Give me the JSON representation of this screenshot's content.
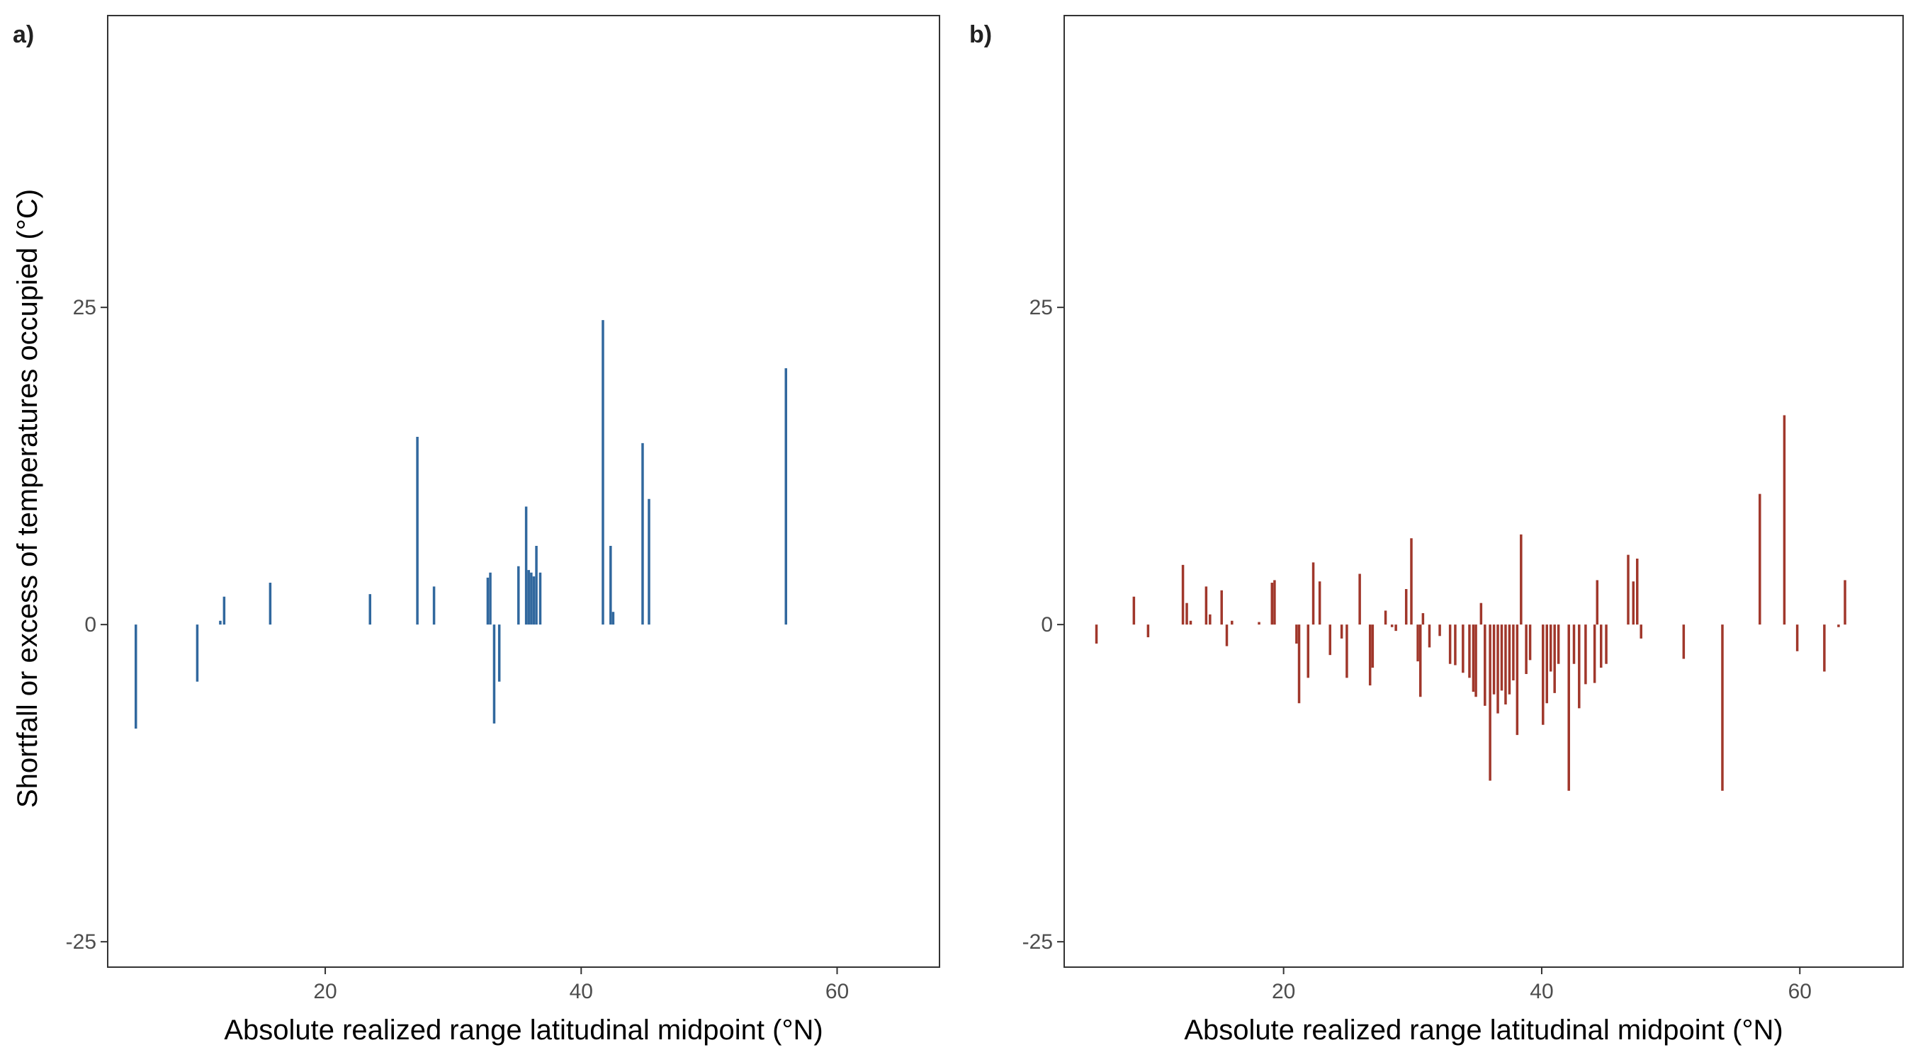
{
  "ylabel": "Shortfall or excess of temperatures occupied (°C)",
  "chart_data": [
    {
      "type": "bar",
      "panel_label": "a)",
      "xlabel": "Absolute realized range latitudinal midpoint (°N)",
      "ylabel": "Shortfall or excess of temperatures occupied (°C)",
      "xlim": [
        3,
        68
      ],
      "ylim": [
        -27,
        48
      ],
      "xticks": [
        20,
        40,
        60
      ],
      "yticks": [
        -25,
        0,
        25
      ],
      "grid": false,
      "color": "#31689e",
      "x": [
        5.2,
        10.0,
        11.8,
        12.1,
        15.7,
        23.5,
        27.2,
        28.5,
        32.7,
        32.9,
        33.2,
        33.6,
        35.1,
        35.7,
        35.9,
        36.1,
        36.3,
        36.5,
        36.8,
        41.7,
        42.3,
        42.5,
        44.8,
        45.3,
        56.0
      ],
      "values": [
        -8.2,
        -4.5,
        0.3,
        2.2,
        3.3,
        2.4,
        14.8,
        3.0,
        3.7,
        4.1,
        -7.8,
        -4.5,
        4.6,
        9.3,
        4.3,
        4.1,
        3.8,
        6.2,
        4.1,
        24.0,
        6.2,
        1.0,
        14.3,
        9.9,
        20.2
      ]
    },
    {
      "type": "bar",
      "panel_label": "b)",
      "xlabel": "Absolute realized range latitudinal midpoint (°N)",
      "ylabel": "",
      "xlim": [
        3,
        68
      ],
      "ylim": [
        -27,
        48
      ],
      "xticks": [
        20,
        40,
        60
      ],
      "yticks": [
        -25,
        0,
        25
      ],
      "grid": false,
      "color": "#a0372b",
      "x": [
        5.5,
        8.4,
        9.5,
        12.2,
        12.5,
        12.8,
        14.0,
        14.3,
        15.2,
        15.6,
        16.0,
        18.1,
        19.1,
        19.3,
        21.0,
        21.2,
        21.9,
        22.3,
        22.8,
        23.6,
        24.5,
        24.9,
        25.9,
        26.7,
        26.9,
        27.9,
        28.4,
        28.7,
        29.5,
        29.9,
        30.4,
        30.6,
        30.8,
        31.3,
        32.1,
        32.9,
        33.3,
        33.9,
        34.4,
        34.7,
        34.9,
        35.3,
        35.6,
        36.0,
        36.3,
        36.6,
        36.9,
        37.2,
        37.5,
        37.8,
        38.1,
        38.4,
        38.8,
        39.1,
        40.1,
        40.4,
        40.7,
        41.0,
        41.3,
        42.1,
        42.5,
        42.9,
        43.4,
        44.1,
        44.3,
        44.6,
        45.0,
        46.7,
        47.1,
        47.4,
        47.7,
        51.0,
        54.0,
        56.9,
        58.8,
        59.8,
        61.9,
        63.0,
        63.5
      ],
      "values": [
        -1.5,
        2.2,
        -1.0,
        4.7,
        1.7,
        0.3,
        3.0,
        0.8,
        2.7,
        -1.7,
        0.3,
        0.2,
        3.3,
        3.5,
        -1.5,
        -6.2,
        -4.2,
        4.9,
        3.4,
        -2.4,
        -1.1,
        -4.2,
        4.0,
        -4.8,
        -3.4,
        1.1,
        -0.2,
        -0.5,
        2.8,
        6.8,
        -2.9,
        -5.7,
        0.9,
        -1.8,
        -0.9,
        -3.1,
        -3.2,
        -3.8,
        -4.2,
        -5.3,
        -5.7,
        1.7,
        -6.4,
        -12.3,
        -5.5,
        -7.0,
        -5.2,
        -6.3,
        -5.5,
        -4.4,
        -8.7,
        7.1,
        -3.9,
        -2.8,
        -7.9,
        -6.2,
        -3.7,
        -5.4,
        -3.1,
        -13.1,
        -3.1,
        -6.6,
        -4.7,
        -4.6,
        3.5,
        -3.4,
        -3.1,
        5.5,
        3.4,
        5.2,
        -1.1,
        -2.7,
        -13.1,
        10.3,
        16.5,
        -2.1,
        -3.7,
        -0.2,
        3.5
      ]
    }
  ]
}
